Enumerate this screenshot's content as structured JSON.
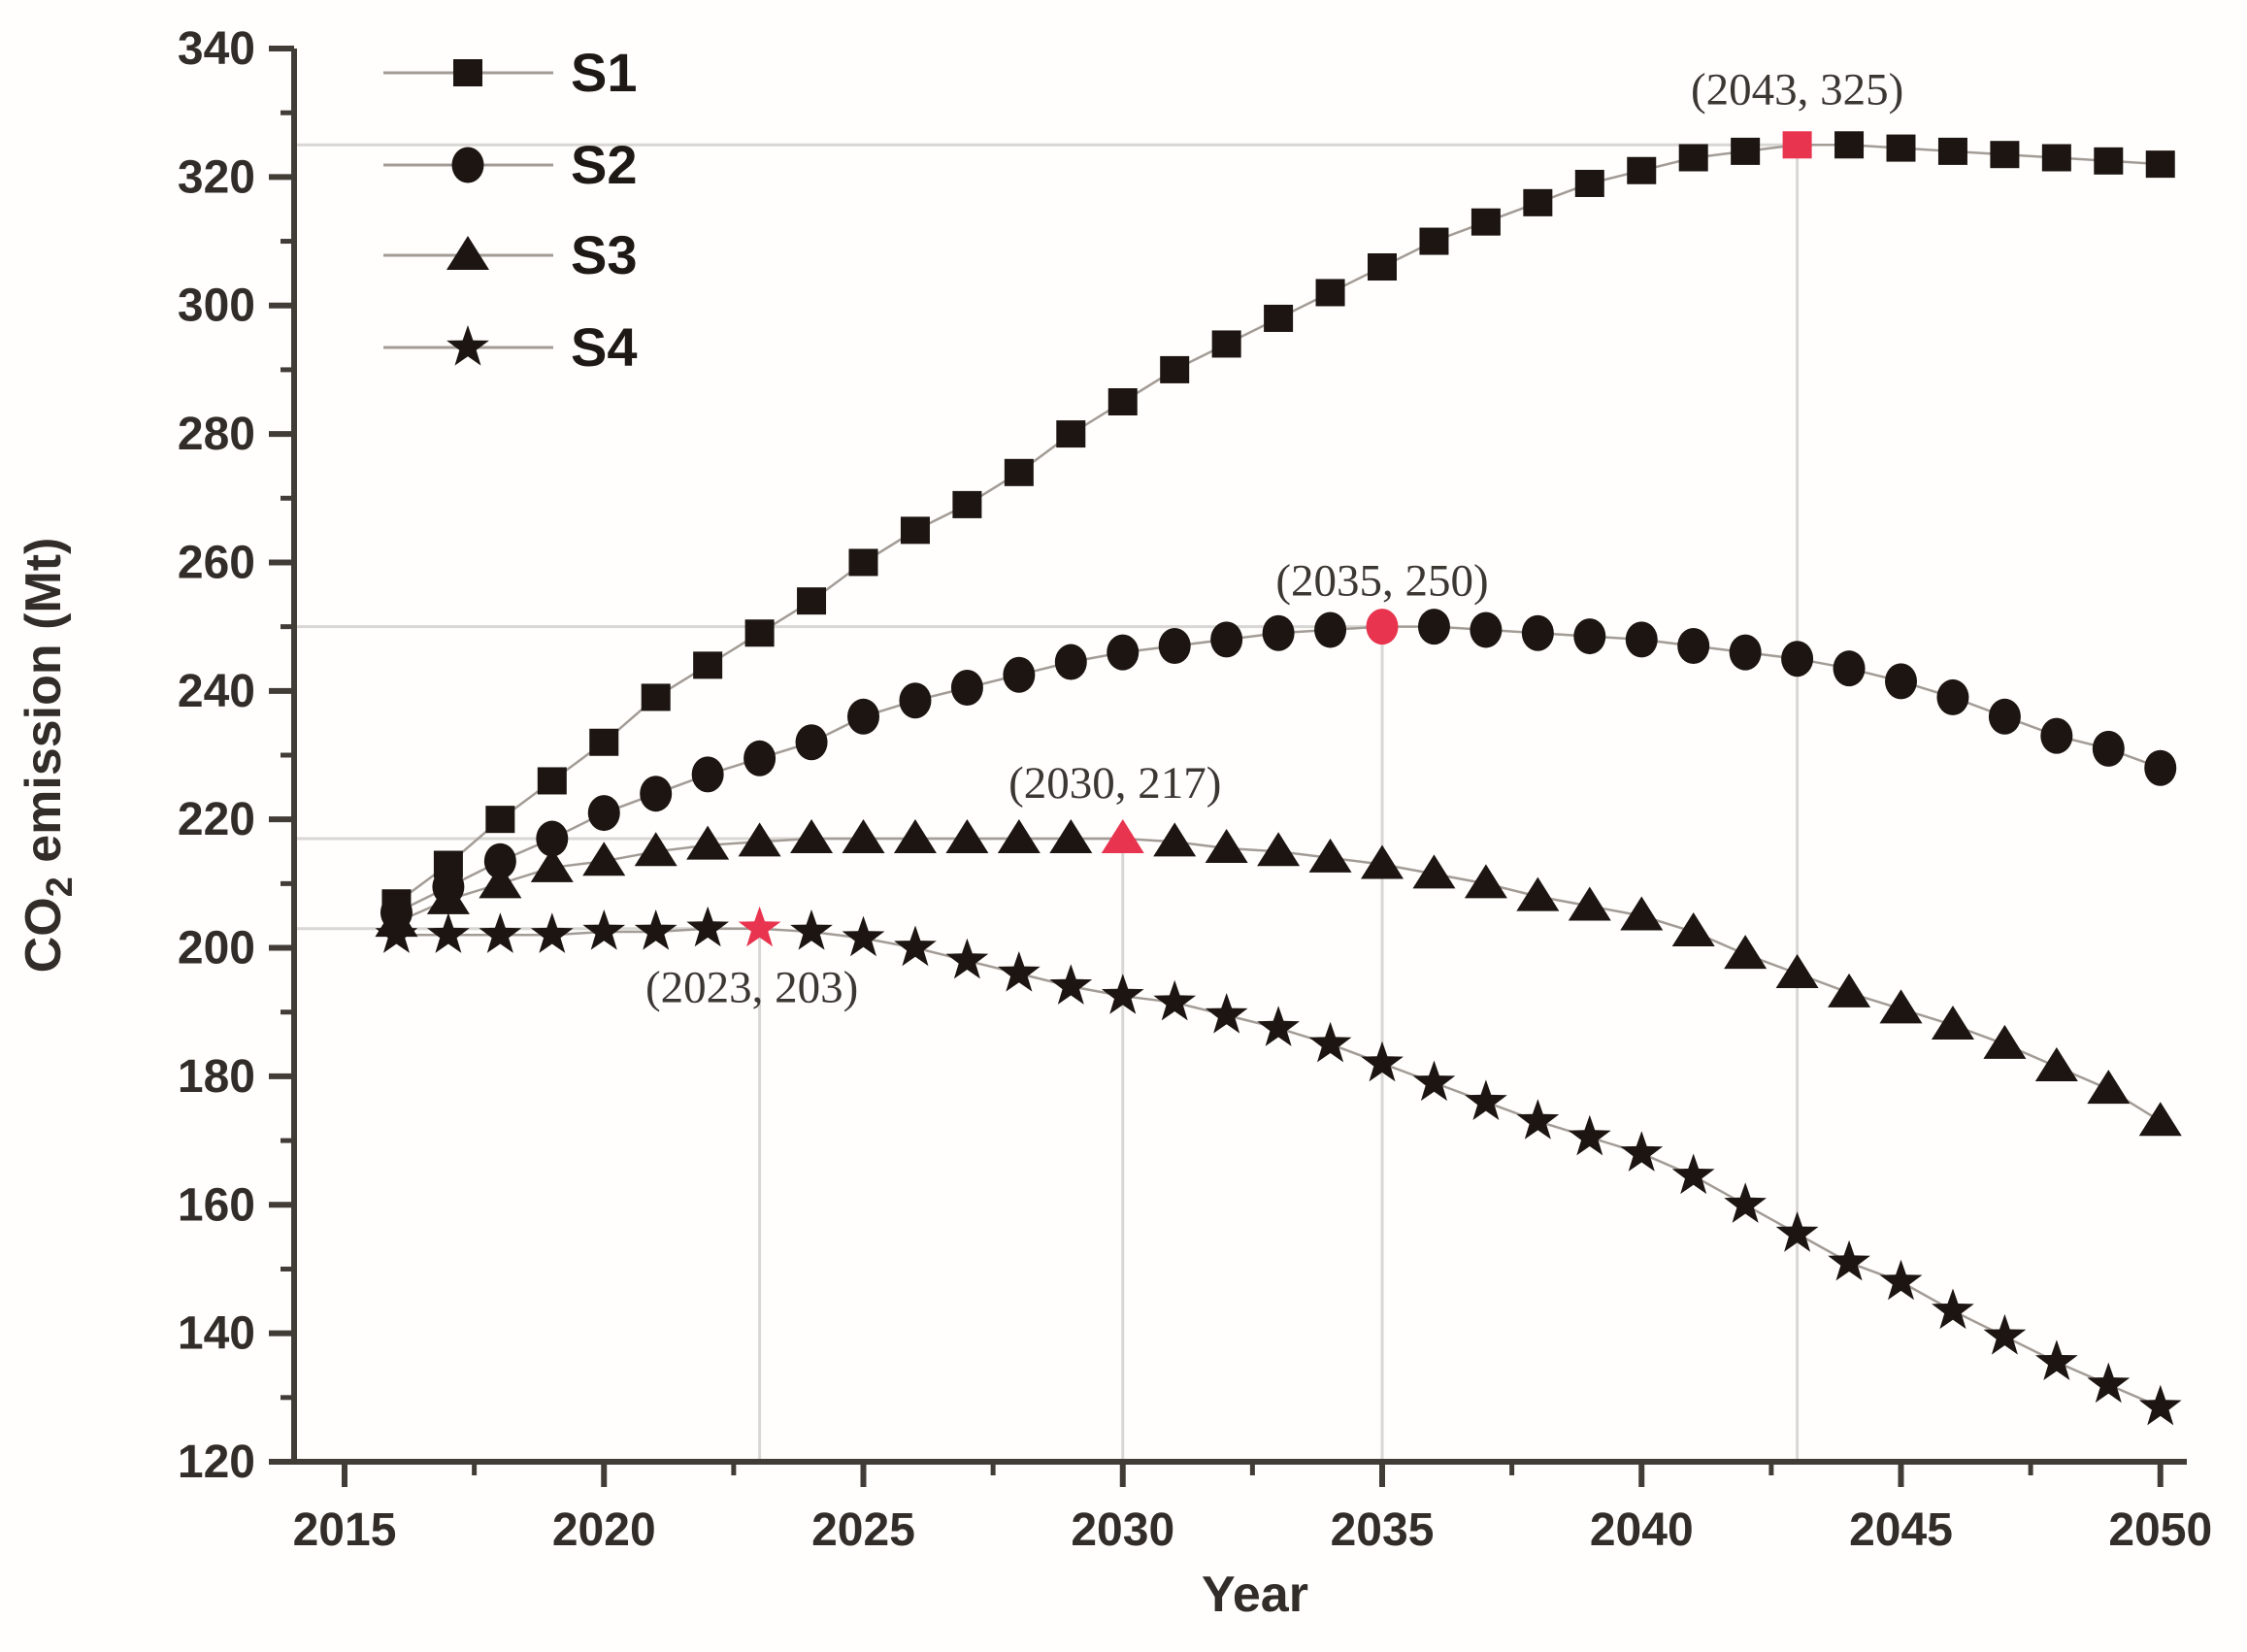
{
  "chart_data": {
    "type": "line",
    "title": "",
    "xlabel": "Year",
    "ylabel": "CO2 emission (Mt)",
    "ylabel_parts": {
      "prefix": "CO",
      "sub": "2",
      "suffix": " emission (Mt)"
    },
    "xlim": [
      2014.05,
      2051.5
    ],
    "ylim": [
      120,
      340
    ],
    "x_ticks": [
      2015,
      2020,
      2025,
      2030,
      2035,
      2040,
      2045,
      2050
    ],
    "y_ticks": [
      120,
      140,
      160,
      180,
      200,
      220,
      240,
      260,
      280,
      300,
      320,
      340
    ],
    "grid": "reference lines only at highlighted peak points",
    "legend_position": "top-left",
    "x": [
      2016,
      2017,
      2018,
      2019,
      2020,
      2021,
      2022,
      2023,
      2024,
      2025,
      2026,
      2027,
      2028,
      2029,
      2030,
      2031,
      2032,
      2033,
      2034,
      2035,
      2036,
      2037,
      2038,
      2039,
      2040,
      2041,
      2042,
      2043,
      2044,
      2045,
      2046,
      2047,
      2048,
      2049,
      2050
    ],
    "series": [
      {
        "name": "S1",
        "marker": "square",
        "values": [
          207,
          213,
          220,
          226,
          232,
          239,
          244,
          249,
          254,
          260,
          265,
          269,
          274,
          280,
          285,
          290,
          294,
          298,
          302,
          306,
          310,
          313,
          316,
          319,
          321,
          323,
          324,
          325,
          325,
          324.5,
          324,
          323.5,
          323,
          322.5,
          322
        ]
      },
      {
        "name": "S2",
        "marker": "circle",
        "values": [
          205.5,
          209.5,
          213.5,
          217,
          221,
          224,
          227,
          229.5,
          232,
          236,
          238.5,
          240.5,
          242.5,
          244.5,
          246,
          247,
          248,
          249,
          249.5,
          250,
          250,
          249.5,
          249,
          248.5,
          248,
          247,
          246,
          245,
          243.5,
          241.5,
          239,
          236,
          233,
          231,
          228
        ]
      },
      {
        "name": "S3",
        "marker": "triangle",
        "values": [
          204,
          207.5,
          210,
          212.5,
          213.5,
          215,
          216,
          216.5,
          217,
          217,
          217,
          217,
          217,
          217,
          217,
          216.5,
          215.5,
          215,
          214,
          213,
          211.5,
          210,
          208,
          206.5,
          205,
          202.5,
          199,
          196,
          193,
          190.5,
          188,
          185,
          181.5,
          178,
          173
        ]
      },
      {
        "name": "S4",
        "marker": "star",
        "values": [
          202,
          202,
          202,
          202,
          202.5,
          202.5,
          203,
          203,
          202.5,
          201.5,
          200,
          198,
          196,
          194,
          192.5,
          191.5,
          189.5,
          187.5,
          185,
          182,
          179,
          176,
          173,
          170.5,
          168,
          164.5,
          160,
          155.5,
          151,
          148,
          143.5,
          139.5,
          135.5,
          132,
          128.5
        ]
      }
    ],
    "annotations": [
      {
        "series": "S1",
        "year": 2043,
        "value": 325,
        "label": "(2043, 325)",
        "label_side": "above"
      },
      {
        "series": "S2",
        "year": 2035,
        "value": 250,
        "label": "(2035, 250)",
        "label_side": "above"
      },
      {
        "series": "S3",
        "year": 2030,
        "value": 217,
        "label": "(2030, 217)",
        "label_side": "above"
      },
      {
        "series": "S4",
        "year": 2023,
        "value": 203,
        "label": "(2023, 203)",
        "label_side": "below"
      }
    ],
    "colors": {
      "marker": "#1c1511",
      "highlight": "#e8344e",
      "axis": "#423c37",
      "tick_text": "#322d28",
      "reference_line": "#d9d7d4",
      "series_line": "#a39c96",
      "annotation_text": "#3b3733"
    }
  }
}
